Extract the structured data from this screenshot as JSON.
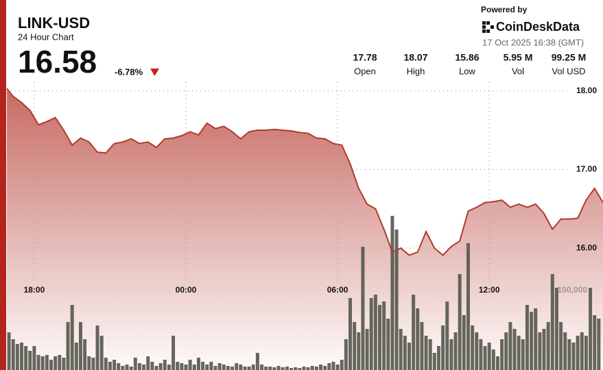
{
  "header": {
    "symbol": "LINK-USD",
    "subtitle": "24 Hour Chart",
    "price": "16.58",
    "change": "-6.78%",
    "powered": "Powered by",
    "brand": "CoinDeskData",
    "timestamp": "17 Oct 2025 16:38 (GMT)"
  },
  "stats": [
    {
      "value": "17.78",
      "label": "Open"
    },
    {
      "value": "18.07",
      "label": "High"
    },
    {
      "value": "15.86",
      "label": "Low"
    },
    {
      "value": "5.95 M",
      "label": "Vol"
    },
    {
      "value": "99.25 M",
      "label": "Vol USD"
    }
  ],
  "chart_data": {
    "type": "area",
    "color": "#b0392e",
    "x": [
      1015,
      1030,
      1050,
      1070,
      1090,
      1110,
      1130,
      1150,
      1170,
      1190,
      1210,
      1230,
      1250,
      1270,
      1290,
      1310,
      1330,
      1350,
      1370,
      1390,
      1410,
      1430,
      1450,
      1470,
      1490,
      1510,
      1530,
      1550,
      1570,
      1590,
      1610,
      1630,
      1650,
      1670,
      1690,
      1710,
      1730,
      1750,
      1770,
      1790,
      1810,
      1830,
      1850,
      1870,
      1890,
      1910,
      1930,
      1950,
      1970,
      1990,
      2010,
      2030,
      2050,
      2070,
      2090,
      2110,
      2130,
      2150,
      2170,
      2190,
      2210,
      2230,
      2250,
      2270,
      2290,
      2310,
      2330,
      2350,
      2370,
      2390,
      2410,
      2430
    ],
    "values": [
      18.03,
      17.93,
      17.85,
      17.75,
      17.57,
      17.61,
      17.66,
      17.5,
      17.31,
      17.4,
      17.35,
      17.22,
      17.21,
      17.33,
      17.35,
      17.39,
      17.33,
      17.35,
      17.28,
      17.39,
      17.4,
      17.43,
      17.48,
      17.44,
      17.59,
      17.52,
      17.55,
      17.48,
      17.39,
      17.48,
      17.5,
      17.5,
      17.51,
      17.5,
      17.49,
      17.47,
      17.46,
      17.4,
      17.39,
      17.33,
      17.31,
      17.07,
      16.76,
      16.56,
      16.5,
      16.24,
      15.95,
      16.0,
      15.91,
      15.95,
      16.21,
      16.0,
      15.91,
      16.02,
      16.09,
      16.47,
      16.52,
      16.58,
      16.59,
      16.61,
      16.52,
      16.56,
      16.52,
      16.56,
      16.44,
      16.24,
      16.37,
      16.37,
      16.38,
      16.61,
      16.76,
      16.58
    ],
    "volume": {
      "type": "bar",
      "color": "#55574c",
      "x": [
        1020,
        1030,
        1040,
        1050,
        1060,
        1070,
        1080,
        1090,
        1100,
        1110,
        1120,
        1130,
        1140,
        1150,
        1160,
        1170,
        1180,
        1190,
        1200,
        1210,
        1220,
        1230,
        1240,
        1250,
        1260,
        1270,
        1280,
        1290,
        1300,
        1310,
        1320,
        1330,
        1340,
        1350,
        1360,
        1370,
        1380,
        1390,
        1400,
        1410,
        1420,
        1430,
        1440,
        1450,
        1460,
        1470,
        1480,
        1490,
        1500,
        1510,
        1520,
        1530,
        1540,
        1550,
        1560,
        1570,
        1580,
        1590,
        1600,
        1610,
        1620,
        1630,
        1640,
        1650,
        1660,
        1670,
        1680,
        1690,
        1700,
        1710,
        1720,
        1730,
        1740,
        1750,
        1760,
        1770,
        1780,
        1790,
        1800,
        1810,
        1820,
        1830,
        1840,
        1850,
        1860,
        1870,
        1880,
        1890,
        1900,
        1910,
        1920,
        1930,
        1940,
        1950,
        1960,
        1970,
        1980,
        1990,
        2000,
        2010,
        2020,
        2030,
        2040,
        2050,
        2060,
        2070,
        2080,
        2090,
        2100,
        2110,
        2120,
        2130,
        2140,
        2150,
        2160,
        2170,
        2180,
        2190,
        2200,
        2210,
        2220,
        2230,
        2240,
        2250,
        2260,
        2270,
        2280,
        2290,
        2300,
        2310,
        2320,
        2330,
        2340,
        2350,
        2360,
        2370,
        2380,
        2390,
        2400,
        2410,
        2420
      ],
      "values": [
        55000,
        45000,
        38000,
        40000,
        35000,
        28000,
        35000,
        22000,
        20000,
        22000,
        15000,
        20000,
        22000,
        18000,
        70000,
        95000,
        40000,
        70000,
        45000,
        20000,
        18000,
        65000,
        50000,
        18000,
        12000,
        15000,
        10000,
        6000,
        8000,
        5000,
        18000,
        10000,
        8000,
        20000,
        12000,
        6000,
        10000,
        15000,
        8000,
        50000,
        12000,
        10000,
        8000,
        15000,
        8000,
        18000,
        12000,
        8000,
        12000,
        6000,
        10000,
        8000,
        6000,
        5000,
        10000,
        8000,
        5000,
        5000,
        8000,
        25000,
        8000,
        5000,
        5000,
        4000,
        6000,
        4000,
        5000,
        3000,
        4000,
        3000,
        5000,
        4000,
        6000,
        5000,
        8000,
        6000,
        10000,
        12000,
        8000,
        15000,
        45000,
        105000,
        70000,
        55000,
        180000,
        60000,
        105000,
        110000,
        95000,
        100000,
        75000,
        225000,
        205000,
        60000,
        50000,
        40000,
        110000,
        90000,
        70000,
        50000,
        45000,
        25000,
        35000,
        65000,
        100000,
        45000,
        55000,
        140000,
        80000,
        185000,
        65000,
        55000,
        45000,
        35000,
        40000,
        30000,
        20000,
        45000,
        55000,
        70000,
        60000,
        50000,
        45000,
        95000,
        85000,
        90000,
        55000,
        60000,
        70000,
        140000,
        120000,
        70000,
        55000,
        45000,
        40000,
        50000,
        55000,
        50000,
        120000,
        80000,
        75000
      ]
    },
    "xlim": [
      1015,
      2430
    ],
    "xticks": [
      {
        "value": 1080,
        "label": "18:00"
      },
      {
        "value": 1440,
        "label": "00:00"
      },
      {
        "value": 1800,
        "label": "06:00"
      },
      {
        "value": 2160,
        "label": "12:00"
      }
    ],
    "ylim": [
      14.45,
      18.11
    ],
    "yticks": [
      {
        "value": 16,
        "label": "16.00"
      },
      {
        "value": 17,
        "label": "17.00"
      },
      {
        "value": 18,
        "label": "18.00"
      }
    ],
    "y2lim": [
      0,
      420000
    ],
    "y2ticks": [
      {
        "value": 100000,
        "label": "100,000"
      }
    ],
    "grid": true
  }
}
